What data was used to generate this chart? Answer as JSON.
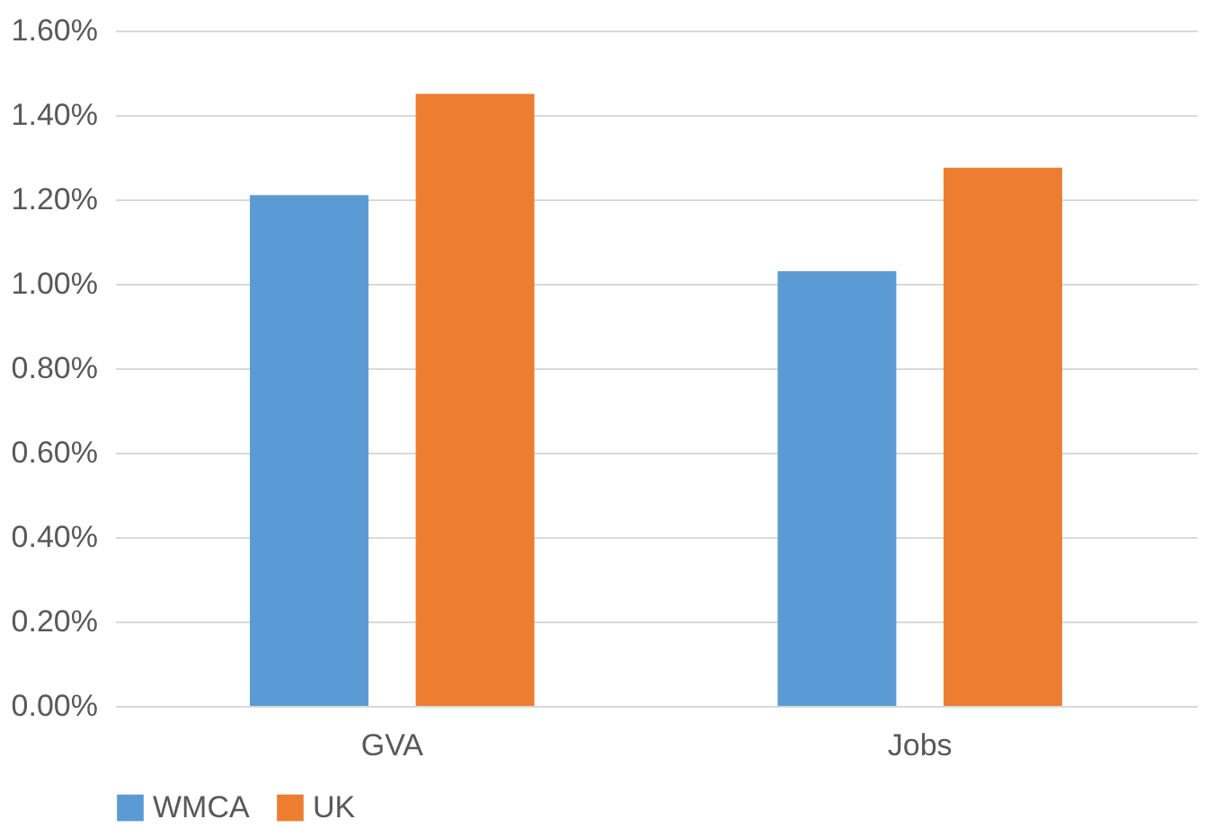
{
  "chart_data": {
    "type": "bar",
    "categories": [
      "GVA",
      "Jobs"
    ],
    "series": [
      {
        "name": "WMCA",
        "color": "#5b9bd5",
        "values": [
          1.21,
          1.03
        ]
      },
      {
        "name": "UK",
        "color": "#ed7d31",
        "values": [
          1.45,
          1.275
        ]
      }
    ],
    "ylim": [
      0,
      1.6
    ],
    "yticks": [
      {
        "value": 0,
        "label": "0.00%"
      },
      {
        "value": 0.2,
        "label": "0.20%"
      },
      {
        "value": 0.4,
        "label": "0.40%"
      },
      {
        "value": 0.6,
        "label": "0.60%"
      },
      {
        "value": 0.8,
        "label": "0.80%"
      },
      {
        "value": 1.0,
        "label": "1.00%"
      },
      {
        "value": 1.2,
        "label": "1.20%"
      },
      {
        "value": 1.4,
        "label": "1.40%"
      },
      {
        "value": 1.6,
        "label": "1.60%"
      }
    ],
    "grid": "y",
    "legend": "bottom"
  }
}
